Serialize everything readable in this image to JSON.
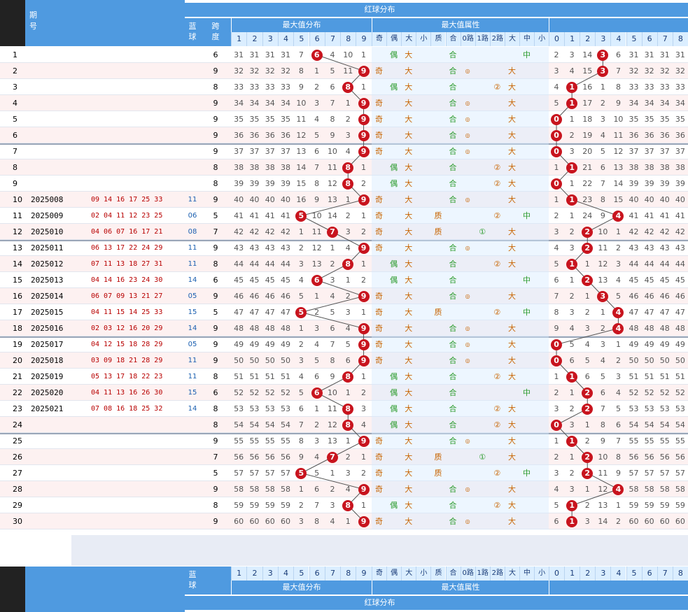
{
  "header": {
    "issue_label": "期\n号",
    "blue_label": "蓝\n球",
    "span_label": "跨\n度",
    "red_dist": "红球分布",
    "maxval_dist": "最大值分布",
    "maxval_attr": "最大值属性"
  },
  "maxval_cols": [
    "1",
    "2",
    "3",
    "4",
    "5",
    "6",
    "7",
    "8",
    "9"
  ],
  "attr_cols": [
    "奇",
    "偶",
    "大",
    "小",
    "质",
    "合",
    "0路",
    "1路",
    "2路",
    "大",
    "中",
    "小"
  ],
  "red_cols": [
    "0",
    "1",
    "2",
    "3",
    "4",
    "5",
    "6",
    "7",
    "8"
  ],
  "colors": {
    "header_bg": "#4f9ae0",
    "ball": "#c8141e",
    "row_alt": "#fde8e8",
    "grid": "#d6dde8"
  },
  "rows": [
    {
      "idx": "1",
      "issue": "",
      "reds": "",
      "blue": "",
      "span": "6",
      "max": 6,
      "miss": [
        "31",
        "31",
        "31",
        "31",
        "7",
        "",
        "4",
        "10",
        "1"
      ],
      "attr": [
        "",
        "偶",
        "大",
        "",
        "",
        "合",
        "",
        "",
        "",
        "",
        "中",
        ""
      ],
      "zone": [
        "2",
        "3",
        "14",
        "",
        "6",
        "31",
        "31",
        "31",
        "31"
      ],
      "zmax": 3
    },
    {
      "idx": "2",
      "issue": "",
      "reds": "",
      "blue": "",
      "span": "9",
      "max": 9,
      "miss": [
        "32",
        "32",
        "32",
        "32",
        "8",
        "1",
        "5",
        "11",
        ""
      ],
      "attr": [
        "奇",
        "",
        "大",
        "",
        "",
        "合",
        "◎",
        "",
        "",
        "大",
        "",
        ""
      ],
      "zone": [
        "3",
        "4",
        "15",
        "",
        "7",
        "32",
        "32",
        "32",
        "32"
      ],
      "zmax": 3
    },
    {
      "idx": "3",
      "issue": "",
      "reds": "",
      "blue": "",
      "span": "8",
      "max": 8,
      "miss": [
        "33",
        "33",
        "33",
        "33",
        "9",
        "2",
        "6",
        "",
        "1"
      ],
      "attr": [
        "",
        "偶",
        "大",
        "",
        "",
        "合",
        "",
        "",
        "②",
        "大",
        "",
        ""
      ],
      "zone": [
        "4",
        "",
        "16",
        "1",
        "8",
        "33",
        "33",
        "33",
        "33"
      ],
      "zmax": 1
    },
    {
      "idx": "4",
      "issue": "",
      "reds": "",
      "blue": "",
      "span": "9",
      "max": 9,
      "miss": [
        "34",
        "34",
        "34",
        "34",
        "10",
        "3",
        "7",
        "1",
        ""
      ],
      "attr": [
        "奇",
        "",
        "大",
        "",
        "",
        "合",
        "◎",
        "",
        "",
        "大",
        "",
        ""
      ],
      "zone": [
        "5",
        "",
        "17",
        "2",
        "9",
        "34",
        "34",
        "34",
        "34"
      ],
      "zmax": 1
    },
    {
      "idx": "5",
      "issue": "",
      "reds": "",
      "blue": "",
      "span": "9",
      "max": 9,
      "miss": [
        "35",
        "35",
        "35",
        "35",
        "11",
        "4",
        "8",
        "2",
        ""
      ],
      "attr": [
        "奇",
        "",
        "大",
        "",
        "",
        "合",
        "◎",
        "",
        "",
        "大",
        "",
        ""
      ],
      "zone": [
        "",
        "1",
        "18",
        "3",
        "10",
        "35",
        "35",
        "35",
        "35"
      ],
      "zmax": 0
    },
    {
      "idx": "6",
      "issue": "",
      "reds": "",
      "blue": "",
      "span": "9",
      "max": 9,
      "miss": [
        "36",
        "36",
        "36",
        "36",
        "12",
        "5",
        "9",
        "3",
        ""
      ],
      "attr": [
        "奇",
        "",
        "大",
        "",
        "",
        "合",
        "◎",
        "",
        "",
        "大",
        "",
        ""
      ],
      "zone": [
        "",
        "2",
        "19",
        "4",
        "11",
        "36",
        "36",
        "36",
        "36"
      ],
      "zmax": 0
    },
    {
      "idx": "7",
      "issue": "",
      "reds": "",
      "blue": "",
      "span": "9",
      "max": 9,
      "miss": [
        "37",
        "37",
        "37",
        "37",
        "13",
        "6",
        "10",
        "4",
        ""
      ],
      "attr": [
        "奇",
        "",
        "大",
        "",
        "",
        "合",
        "◎",
        "",
        "",
        "大",
        "",
        ""
      ],
      "zone": [
        "",
        "3",
        "20",
        "5",
        "12",
        "37",
        "37",
        "37",
        "37"
      ],
      "zmax": 0
    },
    {
      "idx": "8",
      "issue": "",
      "reds": "",
      "blue": "",
      "span": "8",
      "max": 8,
      "miss": [
        "38",
        "38",
        "38",
        "38",
        "14",
        "7",
        "11",
        "",
        "1"
      ],
      "attr": [
        "",
        "偶",
        "大",
        "",
        "",
        "合",
        "",
        "",
        "②",
        "大",
        "",
        ""
      ],
      "zone": [
        "1",
        "",
        "21",
        "6",
        "13",
        "38",
        "38",
        "38",
        "38"
      ],
      "zmax": 1
    },
    {
      "idx": "9",
      "issue": "",
      "reds": "",
      "blue": "",
      "span": "8",
      "max": 8,
      "miss": [
        "39",
        "39",
        "39",
        "39",
        "15",
        "8",
        "12",
        "",
        "2"
      ],
      "attr": [
        "",
        "偶",
        "大",
        "",
        "",
        "合",
        "",
        "",
        "②",
        "大",
        "",
        ""
      ],
      "zone": [
        "",
        "1",
        "22",
        "7",
        "14",
        "39",
        "39",
        "39",
        "39"
      ],
      "zmax": 0
    },
    {
      "idx": "10",
      "issue": "2025008",
      "reds": "09 14 16 17 25 33",
      "blue": "11",
      "span": "9",
      "max": 9,
      "miss": [
        "40",
        "40",
        "40",
        "40",
        "16",
        "9",
        "13",
        "1",
        ""
      ],
      "attr": [
        "奇",
        "",
        "大",
        "",
        "",
        "合",
        "◎",
        "",
        "",
        "大",
        "",
        ""
      ],
      "zone": [
        "1",
        "",
        "23",
        "8",
        "15",
        "40",
        "40",
        "40",
        "40"
      ],
      "zmax": 1
    },
    {
      "idx": "11",
      "issue": "2025009",
      "reds": "02 04 11 12 23 25",
      "blue": "06",
      "span": "5",
      "max": 5,
      "miss": [
        "41",
        "41",
        "41",
        "41",
        "",
        "10",
        "14",
        "2",
        "1"
      ],
      "attr": [
        "奇",
        "",
        "大",
        "",
        "质",
        "",
        "",
        "",
        "②",
        "",
        "中",
        ""
      ],
      "zone": [
        "2",
        "1",
        "24",
        "9",
        "",
        "41",
        "41",
        "41",
        "41"
      ],
      "zmax": 4
    },
    {
      "idx": "12",
      "issue": "2025010",
      "reds": "04 06 07 16 17 21",
      "blue": "08",
      "span": "7",
      "max": 7,
      "miss": [
        "42",
        "42",
        "42",
        "42",
        "1",
        "11",
        "",
        "3",
        "2"
      ],
      "attr": [
        "奇",
        "",
        "大",
        "",
        "质",
        "",
        "",
        "①",
        "",
        "大",
        "",
        ""
      ],
      "zone": [
        "3",
        "2",
        "",
        "10",
        "1",
        "42",
        "42",
        "42",
        "42"
      ],
      "zmax": 2
    },
    {
      "idx": "13",
      "issue": "2025011",
      "reds": "06 13 17 22 24 29",
      "blue": "11",
      "span": "9",
      "max": 9,
      "miss": [
        "43",
        "43",
        "43",
        "43",
        "2",
        "12",
        "1",
        "4",
        ""
      ],
      "attr": [
        "奇",
        "",
        "大",
        "",
        "",
        "合",
        "◎",
        "",
        "",
        "大",
        "",
        ""
      ],
      "zone": [
        "4",
        "3",
        "",
        "11",
        "2",
        "43",
        "43",
        "43",
        "43"
      ],
      "zmax": 2
    },
    {
      "idx": "14",
      "issue": "2025012",
      "reds": "07 11 13 18 27 31",
      "blue": "11",
      "span": "8",
      "max": 8,
      "miss": [
        "44",
        "44",
        "44",
        "44",
        "3",
        "13",
        "2",
        "",
        "1"
      ],
      "attr": [
        "",
        "偶",
        "大",
        "",
        "",
        "合",
        "",
        "",
        "②",
        "大",
        "",
        ""
      ],
      "zone": [
        "5",
        "",
        "1",
        "12",
        "3",
        "44",
        "44",
        "44",
        "44"
      ],
      "zmax": 1
    },
    {
      "idx": "15",
      "issue": "2025013",
      "reds": "04 14 16 23 24 30",
      "blue": "14",
      "span": "6",
      "max": 6,
      "miss": [
        "45",
        "45",
        "45",
        "45",
        "4",
        "",
        "3",
        "1",
        "2"
      ],
      "attr": [
        "",
        "偶",
        "大",
        "",
        "",
        "合",
        "",
        "",
        "",
        "",
        "中",
        ""
      ],
      "zone": [
        "6",
        "1",
        "",
        "13",
        "4",
        "45",
        "45",
        "45",
        "45"
      ],
      "zmax": 2
    },
    {
      "idx": "16",
      "issue": "2025014",
      "reds": "06 07 09 13 21 27",
      "blue": "05",
      "span": "9",
      "max": 9,
      "miss": [
        "46",
        "46",
        "46",
        "46",
        "5",
        "1",
        "4",
        "2",
        ""
      ],
      "attr": [
        "奇",
        "",
        "大",
        "",
        "",
        "合",
        "◎",
        "",
        "",
        "大",
        "",
        ""
      ],
      "zone": [
        "7",
        "2",
        "1",
        "",
        "5",
        "46",
        "46",
        "46",
        "46"
      ],
      "zmax": 3
    },
    {
      "idx": "17",
      "issue": "2025015",
      "reds": "04 11 15 14 25 33",
      "blue": "15",
      "span": "5",
      "max": 5,
      "miss": [
        "47",
        "47",
        "47",
        "47",
        "",
        "2",
        "5",
        "3",
        "1"
      ],
      "attr": [
        "奇",
        "",
        "大",
        "",
        "质",
        "",
        "",
        "",
        "②",
        "",
        "中",
        ""
      ],
      "zone": [
        "8",
        "3",
        "2",
        "1",
        "",
        "47",
        "47",
        "47",
        "47"
      ],
      "zmax": 4
    },
    {
      "idx": "18",
      "issue": "2025016",
      "reds": "02 03 12 16 20 29",
      "blue": "14",
      "span": "9",
      "max": 9,
      "miss": [
        "48",
        "48",
        "48",
        "48",
        "1",
        "3",
        "6",
        "4",
        ""
      ],
      "attr": [
        "奇",
        "",
        "大",
        "",
        "",
        "合",
        "◎",
        "",
        "",
        "大",
        "",
        ""
      ],
      "zone": [
        "9",
        "4",
        "3",
        "2",
        "",
        "48",
        "48",
        "48",
        "48"
      ],
      "zmax": 4
    },
    {
      "idx": "19",
      "issue": "2025017",
      "reds": "04 12 15 18 28 29",
      "blue": "05",
      "span": "9",
      "max": 9,
      "miss": [
        "49",
        "49",
        "49",
        "49",
        "2",
        "4",
        "7",
        "5",
        ""
      ],
      "attr": [
        "奇",
        "",
        "大",
        "",
        "",
        "合",
        "◎",
        "",
        "",
        "大",
        "",
        ""
      ],
      "zone": [
        "",
        "5",
        "4",
        "3",
        "1",
        "49",
        "49",
        "49",
        "49"
      ],
      "zmax": 0
    },
    {
      "idx": "20",
      "issue": "2025018",
      "reds": "03 09 18 21 28 29",
      "blue": "11",
      "span": "9",
      "max": 9,
      "miss": [
        "50",
        "50",
        "50",
        "50",
        "3",
        "5",
        "8",
        "6",
        ""
      ],
      "attr": [
        "奇",
        "",
        "大",
        "",
        "",
        "合",
        "◎",
        "",
        "",
        "大",
        "",
        ""
      ],
      "zone": [
        "",
        "6",
        "5",
        "4",
        "2",
        "50",
        "50",
        "50",
        "50"
      ],
      "zmax": 0
    },
    {
      "idx": "21",
      "issue": "2025019",
      "reds": "05 13 17 18 22 23",
      "blue": "11",
      "span": "8",
      "max": 8,
      "miss": [
        "51",
        "51",
        "51",
        "51",
        "4",
        "6",
        "9",
        "",
        "1"
      ],
      "attr": [
        "",
        "偶",
        "大",
        "",
        "",
        "合",
        "",
        "",
        "②",
        "大",
        "",
        ""
      ],
      "zone": [
        "1",
        "",
        "6",
        "5",
        "3",
        "51",
        "51",
        "51",
        "51"
      ],
      "zmax": 1
    },
    {
      "idx": "22",
      "issue": "2025020",
      "reds": "04 11 13 16 26 30",
      "blue": "15",
      "span": "6",
      "max": 6,
      "miss": [
        "52",
        "52",
        "52",
        "52",
        "5",
        "",
        "10",
        "1",
        "2"
      ],
      "attr": [
        "",
        "偶",
        "大",
        "",
        "",
        "合",
        "",
        "",
        "",
        "",
        "中",
        ""
      ],
      "zone": [
        "2",
        "1",
        "",
        "6",
        "4",
        "52",
        "52",
        "52",
        "52"
      ],
      "zmax": 2
    },
    {
      "idx": "23",
      "issue": "2025021",
      "reds": "07 08 16 18 25 32",
      "blue": "14",
      "span": "8",
      "max": 8,
      "miss": [
        "53",
        "53",
        "53",
        "53",
        "6",
        "1",
        "11",
        "",
        "3"
      ],
      "attr": [
        "",
        "偶",
        "大",
        "",
        "",
        "合",
        "",
        "",
        "②",
        "大",
        "",
        ""
      ],
      "zone": [
        "3",
        "2",
        "",
        "7",
        "5",
        "53",
        "53",
        "53",
        "53"
      ],
      "zmax": 2
    },
    {
      "idx": "24",
      "issue": "",
      "reds": "",
      "blue": "",
      "span": "8",
      "max": 8,
      "miss": [
        "54",
        "54",
        "54",
        "54",
        "7",
        "2",
        "12",
        "",
        "4"
      ],
      "attr": [
        "",
        "偶",
        "大",
        "",
        "",
        "合",
        "",
        "",
        "②",
        "大",
        "",
        ""
      ],
      "zone": [
        "",
        "3",
        "1",
        "8",
        "6",
        "54",
        "54",
        "54",
        "54"
      ],
      "zmax": 0
    },
    {
      "idx": "25",
      "issue": "",
      "reds": "",
      "blue": "",
      "span": "9",
      "max": 9,
      "miss": [
        "55",
        "55",
        "55",
        "55",
        "8",
        "3",
        "13",
        "1",
        ""
      ],
      "attr": [
        "奇",
        "",
        "大",
        "",
        "",
        "合",
        "◎",
        "",
        "",
        "大",
        "",
        ""
      ],
      "zone": [
        "1",
        "",
        "2",
        "9",
        "7",
        "55",
        "55",
        "55",
        "55"
      ],
      "zmax": 1
    },
    {
      "idx": "26",
      "issue": "",
      "reds": "",
      "blue": "",
      "span": "7",
      "max": 7,
      "miss": [
        "56",
        "56",
        "56",
        "56",
        "9",
        "4",
        "",
        "2",
        "1"
      ],
      "attr": [
        "奇",
        "",
        "大",
        "",
        "质",
        "",
        "",
        "①",
        "",
        "大",
        "",
        ""
      ],
      "zone": [
        "2",
        "1",
        "",
        "10",
        "8",
        "56",
        "56",
        "56",
        "56"
      ],
      "zmax": 2
    },
    {
      "idx": "27",
      "issue": "",
      "reds": "",
      "blue": "",
      "span": "5",
      "max": 5,
      "miss": [
        "57",
        "57",
        "57",
        "57",
        "",
        "5",
        "1",
        "3",
        "2"
      ],
      "attr": [
        "奇",
        "",
        "大",
        "",
        "质",
        "",
        "",
        "",
        "②",
        "",
        "中",
        ""
      ],
      "zone": [
        "3",
        "2",
        "",
        "11",
        "9",
        "57",
        "57",
        "57",
        "57"
      ],
      "zmax": 2
    },
    {
      "idx": "28",
      "issue": "",
      "reds": "",
      "blue": "",
      "span": "9",
      "max": 9,
      "miss": [
        "58",
        "58",
        "58",
        "58",
        "1",
        "6",
        "2",
        "4",
        ""
      ],
      "attr": [
        "奇",
        "",
        "大",
        "",
        "",
        "合",
        "◎",
        "",
        "",
        "大",
        "",
        ""
      ],
      "zone": [
        "4",
        "3",
        "1",
        "12",
        "",
        "58",
        "58",
        "58",
        "58"
      ],
      "zmax": 4
    },
    {
      "idx": "29",
      "issue": "",
      "reds": "",
      "blue": "",
      "span": "8",
      "max": 8,
      "miss": [
        "59",
        "59",
        "59",
        "59",
        "2",
        "7",
        "3",
        "",
        "1"
      ],
      "attr": [
        "",
        "偶",
        "大",
        "",
        "",
        "合",
        "",
        "",
        "②",
        "大",
        "",
        ""
      ],
      "zone": [
        "5",
        "",
        "2",
        "13",
        "1",
        "59",
        "59",
        "59",
        "59"
      ],
      "zmax": 1
    },
    {
      "idx": "30",
      "issue": "",
      "reds": "",
      "blue": "",
      "span": "9",
      "max": 9,
      "miss": [
        "60",
        "60",
        "60",
        "60",
        "3",
        "8",
        "4",
        "1",
        ""
      ],
      "attr": [
        "奇",
        "",
        "大",
        "",
        "",
        "合",
        "◎",
        "",
        "",
        "大",
        "",
        ""
      ],
      "zone": [
        "6",
        "",
        "3",
        "14",
        "2",
        "60",
        "60",
        "60",
        "60"
      ],
      "zmax": 1
    }
  ],
  "chart_data": {
    "type": "table",
    "title": "红球分布",
    "maxval_series": [
      6,
      9,
      8,
      9,
      9,
      9,
      9,
      8,
      8,
      9,
      5,
      7,
      9,
      8,
      6,
      9,
      5,
      9,
      9,
      9,
      8,
      6,
      8,
      8,
      9,
      7,
      5,
      9,
      8,
      9
    ],
    "zone_series": [
      3,
      3,
      1,
      1,
      0,
      0,
      0,
      1,
      0,
      1,
      4,
      2,
      2,
      1,
      2,
      3,
      4,
      4,
      0,
      0,
      1,
      2,
      2,
      0,
      1,
      2,
      2,
      4,
      1,
      1
    ]
  }
}
